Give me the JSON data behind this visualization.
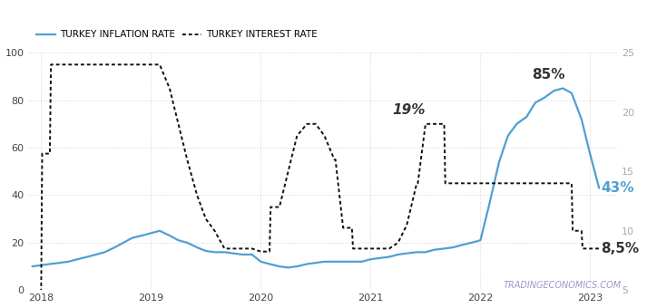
{
  "legend_inflation": "TURKEY INFLATION RATE",
  "legend_interest": "TURKEY INTEREST RATE",
  "watermark": "TRADINGECONOMICS.COM",
  "xlim": [
    2017.88,
    2023.25
  ],
  "ylim_left": [
    0,
    100
  ],
  "ylim_right": [
    5,
    25
  ],
  "yticks_left": [
    0,
    20,
    40,
    60,
    80,
    100
  ],
  "yticks_right": [
    5,
    10,
    15,
    20,
    25
  ],
  "xticks": [
    2018,
    2019,
    2020,
    2021,
    2022,
    2023
  ],
  "inflation_x": [
    2017.92,
    2018.0,
    2018.08,
    2018.17,
    2018.25,
    2018.33,
    2018.42,
    2018.5,
    2018.58,
    2018.67,
    2018.75,
    2018.83,
    2018.92,
    2019.0,
    2019.08,
    2019.17,
    2019.25,
    2019.33,
    2019.42,
    2019.5,
    2019.58,
    2019.67,
    2019.75,
    2019.83,
    2019.92,
    2020.0,
    2020.08,
    2020.17,
    2020.25,
    2020.33,
    2020.42,
    2020.5,
    2020.58,
    2020.67,
    2020.75,
    2020.83,
    2020.92,
    2021.0,
    2021.08,
    2021.17,
    2021.25,
    2021.33,
    2021.42,
    2021.5,
    2021.58,
    2021.67,
    2021.75,
    2021.83,
    2021.92,
    2022.0,
    2022.08,
    2022.17,
    2022.25,
    2022.33,
    2022.42,
    2022.5,
    2022.58,
    2022.67,
    2022.75,
    2022.83,
    2022.92,
    2023.0,
    2023.08
  ],
  "inflation_y": [
    10,
    10.5,
    11,
    11.5,
    12,
    13,
    14,
    15,
    16,
    18,
    20,
    22,
    23,
    24,
    25,
    23,
    21,
    20,
    18,
    16.5,
    16,
    16,
    15.5,
    15,
    15,
    12,
    11,
    10,
    9.5,
    10,
    11,
    11.5,
    12,
    12,
    12,
    12,
    12,
    13,
    13.5,
    14,
    15,
    15.5,
    16,
    16,
    17,
    17.5,
    18,
    19,
    20,
    21,
    36,
    54,
    65,
    70,
    73,
    79,
    81,
    84,
    85,
    83,
    72,
    57,
    43
  ],
  "interest_x": [
    2017.92,
    2018.0,
    2018.01,
    2018.08,
    2018.09,
    2018.17,
    2018.25,
    2018.33,
    2018.42,
    2018.5,
    2018.58,
    2018.67,
    2018.68,
    2018.75,
    2018.83,
    2018.92,
    2019.0,
    2019.08,
    2019.17,
    2019.25,
    2019.33,
    2019.42,
    2019.5,
    2019.58,
    2019.67,
    2019.68,
    2019.75,
    2019.83,
    2019.92,
    2020.0,
    2020.08,
    2020.09,
    2020.17,
    2020.25,
    2020.33,
    2020.42,
    2020.5,
    2020.58,
    2020.67,
    2020.68,
    2020.75,
    2020.83,
    2020.84,
    2020.92,
    2021.0,
    2021.08,
    2021.17,
    2021.25,
    2021.33,
    2021.42,
    2021.43,
    2021.5,
    2021.58,
    2021.67,
    2021.68,
    2021.75,
    2021.83,
    2021.92,
    2022.0,
    2022.08,
    2022.17,
    2022.25,
    2022.33,
    2022.42,
    2022.5,
    2022.58,
    2022.67,
    2022.68,
    2022.75,
    2022.83,
    2022.84,
    2022.92,
    2022.93,
    2023.0,
    2023.08
  ],
  "interest_y": [
    4,
    4,
    16.5,
    16.5,
    24,
    24,
    24,
    24,
    24,
    24,
    24,
    24,
    24,
    24,
    24,
    24,
    24,
    24,
    22,
    19,
    16,
    13,
    11,
    10,
    8.5,
    8.5,
    8.5,
    8.5,
    8.5,
    8.25,
    8.25,
    12,
    12,
    15,
    18,
    19,
    19,
    18,
    16,
    16,
    10.25,
    10.25,
    8.5,
    8.5,
    8.5,
    8.5,
    8.5,
    9,
    10.5,
    14,
    14,
    19,
    19,
    19,
    14,
    14,
    14,
    14,
    14,
    14,
    14,
    14,
    14,
    14,
    14,
    14,
    14,
    14,
    14,
    14,
    10,
    10,
    8.5,
    8.5,
    8.5
  ],
  "inflation_color": "#4f9fd4",
  "interest_color": "#111111",
  "bg_color": "#ffffff",
  "grid_color": "#cccccc",
  "right_axis_color": "#aaaaaa",
  "ann_85_x": 2022.62,
  "ann_85_y": 88,
  "ann_43_x": 2023.1,
  "ann_43_y": 43,
  "ann_19_x": 2021.35,
  "ann_19_y": 76,
  "ann_85_color": "#333333",
  "ann_43_color": "#4f9fd4",
  "ann_19_color": "#333333",
  "ann_85p_color": "#333333",
  "watermark_color": "#9999cc"
}
